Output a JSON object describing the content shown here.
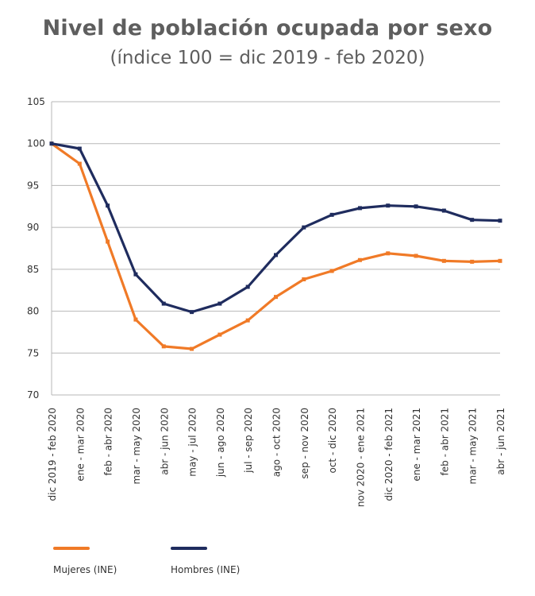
{
  "title": "Nivel de población ocupada por sexo",
  "subtitle": "(índice 100 = dic 2019 - feb 2020)",
  "chart_data": {
    "type": "line",
    "title": "Nivel de población ocupada por sexo",
    "subtitle": "(índice 100 = dic 2019 - feb 2020)",
    "categories": [
      "dic 2019 - feb 2020",
      "ene - mar 2020",
      "feb - abr 2020",
      "mar - may 2020",
      "abr - jun 2020",
      "may - jul 2020",
      "jun - ago 2020",
      "jul - sep 2020",
      "ago - oct 2020",
      "sep - nov 2020",
      "oct - dic 2020",
      "nov 2020 - ene 2021",
      "dic 2020 - feb 2021",
      "ene - mar 2021",
      "feb - abr 2021",
      "mar - may 2021",
      "abr - jun 2021"
    ],
    "yticks": [
      70,
      75,
      80,
      85,
      90,
      95,
      100,
      105
    ],
    "ylim": [
      70,
      105
    ],
    "grid": true,
    "legend_position": "bottom-left",
    "series": [
      {
        "name": "Mujeres (INE)",
        "color": "#f07a27",
        "values": [
          100.0,
          97.6,
          88.3,
          79.0,
          75.8,
          75.5,
          77.2,
          78.9,
          81.7,
          83.8,
          84.8,
          86.1,
          86.9,
          86.6,
          86.0,
          85.9,
          86.0
        ]
      },
      {
        "name": "Hombres (INE)",
        "color": "#1f2c5e",
        "values": [
          100.0,
          99.4,
          92.6,
          84.4,
          80.9,
          79.9,
          80.9,
          82.9,
          86.7,
          90.0,
          91.5,
          92.3,
          92.6,
          92.5,
          92.0,
          90.9,
          90.8
        ]
      }
    ]
  }
}
